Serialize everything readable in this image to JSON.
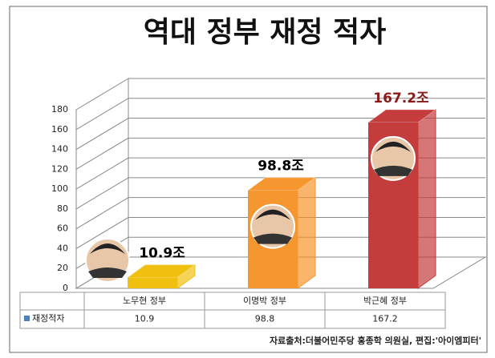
{
  "chart_data": {
    "type": "bar3d",
    "title": "역대 정부 재정 적자",
    "categories": [
      "노무현 정부",
      "이명박 정부",
      "박근혜 정부"
    ],
    "series": [
      {
        "name": "재정적자",
        "color": "#4f81bd",
        "values": [
          10.9,
          98.8,
          167.2
        ],
        "value_labels": [
          "10.9조",
          "98.8조",
          "167.2조"
        ],
        "bar_colors": [
          "#f0c010",
          "#f6962e",
          "#c43c3c"
        ],
        "value_label_colors": [
          "#000000",
          "#000000",
          "#8b1a1a"
        ]
      }
    ],
    "ylim": [
      0,
      180
    ],
    "yticks": [
      0,
      20,
      40,
      60,
      80,
      100,
      120,
      140,
      160,
      180
    ],
    "grid": true,
    "source": "자료출처:더불어민주당 홍종학 의원실, 편집:'아이엠피터'"
  }
}
